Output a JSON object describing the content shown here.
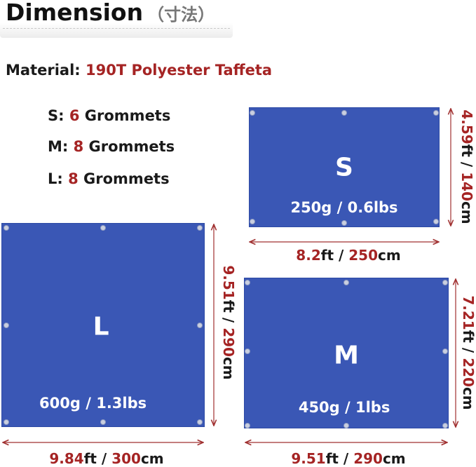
{
  "header": {
    "title": "Dimension",
    "subtitle": "（寸法）"
  },
  "material": {
    "label": "Material:",
    "value": "190T Polyester Taffeta"
  },
  "grommets": [
    {
      "size": "S:",
      "count": "6",
      "label": "Grommets"
    },
    {
      "size": "M:",
      "count": "8",
      "label": "Grommets"
    },
    {
      "size": "L:",
      "count": "8",
      "label": "Grommets"
    }
  ],
  "tarps": {
    "S": {
      "letter": "S",
      "weight": "250g / 0.6lbs",
      "width_ft": "8.2",
      "width_cm": "250",
      "height_ft": "4.59",
      "height_cm": "140"
    },
    "M": {
      "letter": "M",
      "weight": "450g / 1lbs",
      "width_ft": "9.51",
      "width_cm": "290",
      "height_ft": "7.21",
      "height_cm": "220"
    },
    "L": {
      "letter": "L",
      "weight": "600g / 1.3lbs",
      "width_ft": "9.84",
      "width_cm": "300",
      "height_ft": "9.51",
      "height_cm": "290"
    }
  },
  "units": {
    "ft": "ft",
    "cm": "cm",
    "sep": " / "
  },
  "colors": {
    "tarp": "#3a57b5",
    "accent": "#a52424",
    "arrow": "#a03030"
  }
}
